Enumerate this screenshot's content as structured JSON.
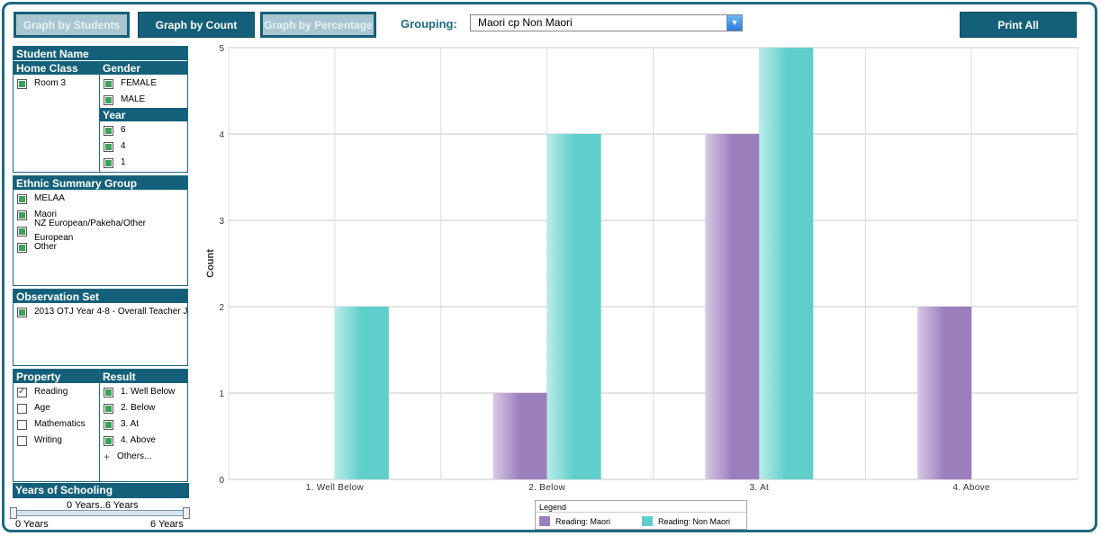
{
  "toolbar": {
    "graph_students": "Graph by Students",
    "graph_count": "Graph by Count",
    "graph_percentage": "Graph by Percentage",
    "grouping_label": "Grouping:",
    "grouping_value": "Maori cp Non Maori",
    "print_all": "Print All"
  },
  "filters": {
    "student_name": "Student Name",
    "home_class_header": "Home Class",
    "home_class_items": [
      "Room 3"
    ],
    "gender_header": "Gender",
    "gender_items": [
      "FEMALE",
      "MALE"
    ],
    "year_header": "Year",
    "year_items": [
      "6",
      "4",
      "1"
    ],
    "ethnic_header": "Ethnic Summary Group",
    "ethnic_items": [
      "MELAA",
      "Maori",
      "NZ European/Pakeha/Other European",
      "Other"
    ],
    "observation_header": "Observation Set",
    "observation_items": [
      "2013 OTJ Year 4-8 - Overall Teacher J"
    ],
    "property_header": "Property",
    "property_items": [
      "Reading",
      "Age",
      "Mathematics",
      "Writing"
    ],
    "result_header": "Result",
    "result_items": [
      "1. Well Below",
      "2. Below",
      "3. At",
      "4. Above"
    ],
    "result_others": "Others...",
    "years_header": "Years of Schooling",
    "years_range": "0 Years..6 Years",
    "years_min": "0 Years",
    "years_max": "6 Years"
  },
  "chart_data": {
    "type": "bar",
    "categories": [
      "1. Well Below",
      "2. Below",
      "3. At",
      "4. Above"
    ],
    "series": [
      {
        "name": "Reading: Maori",
        "values": [
          0,
          1,
          4,
          2
        ],
        "color": "#9b7fbd"
      },
      {
        "name": "Reading: Non Maori",
        "values": [
          2,
          4,
          5,
          0
        ],
        "color": "#5fcfcb"
      }
    ],
    "ylabel": "Count",
    "ylim": [
      0,
      5
    ],
    "yticks": [
      "0",
      "1",
      "2",
      "3",
      "4",
      "5"
    ],
    "legend_title": "Legend",
    "legend_position": "bottom-center",
    "grid": true
  }
}
